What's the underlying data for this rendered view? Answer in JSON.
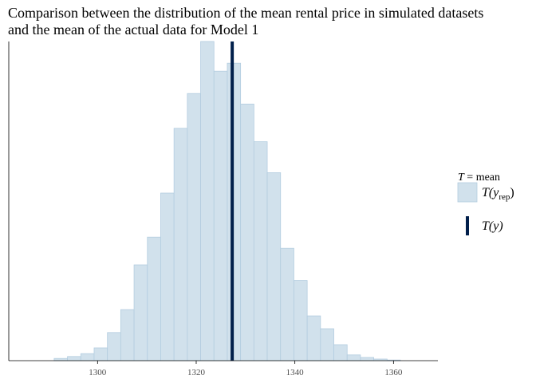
{
  "title_lines": [
    "Comparison between the distribution of the mean rental price in simulated datasets",
    "and the mean of the actual data for Model 1"
  ],
  "colors": {
    "bar_fill": "#d1e1ec",
    "bar_stroke": "#b3cde0",
    "observed_line": "#011f4b",
    "axis": "#000000"
  },
  "legend": {
    "title_stat": "T",
    "title_rest": " = mean",
    "rep_label": "T(y",
    "rep_subscript": "rep",
    "rep_close": ")",
    "obs_label": "T(y)"
  },
  "chart_data": {
    "type": "histogram",
    "title": "Comparison between the distribution of the mean rental price in simulated datasets and the mean of the actual data for Model 1",
    "xlabel": "",
    "ylabel": "",
    "xlim": [
      1282,
      1369
    ],
    "ylim": [
      0,
      1
    ],
    "x_ticks": [
      1300,
      1320,
      1340,
      1360
    ],
    "x_tick_labels": [
      "1300",
      "1320",
      "1340",
      "1360"
    ],
    "bin_width": 2.7,
    "bin_starts": [
      1291.2,
      1293.9,
      1296.6,
      1299.3,
      1302.0,
      1304.7,
      1307.4,
      1310.1,
      1312.8,
      1315.5,
      1318.2,
      1320.9,
      1323.6,
      1326.3,
      1329.0,
      1331.7,
      1334.4,
      1337.1,
      1339.8,
      1342.5,
      1345.2,
      1347.9,
      1350.6,
      1353.3,
      1356.0,
      1358.7
    ],
    "relative_counts": [
      0.007,
      0.013,
      0.022,
      0.04,
      0.088,
      0.16,
      0.3,
      0.387,
      0.525,
      0.728,
      0.837,
      1.0,
      0.907,
      0.932,
      0.804,
      0.686,
      0.589,
      0.352,
      0.251,
      0.14,
      0.1,
      0.05,
      0.018,
      0.01,
      0.005,
      0.002
    ],
    "observed_value": 1327.3,
    "stat": "mean",
    "grid": false,
    "legend_position": "right"
  }
}
